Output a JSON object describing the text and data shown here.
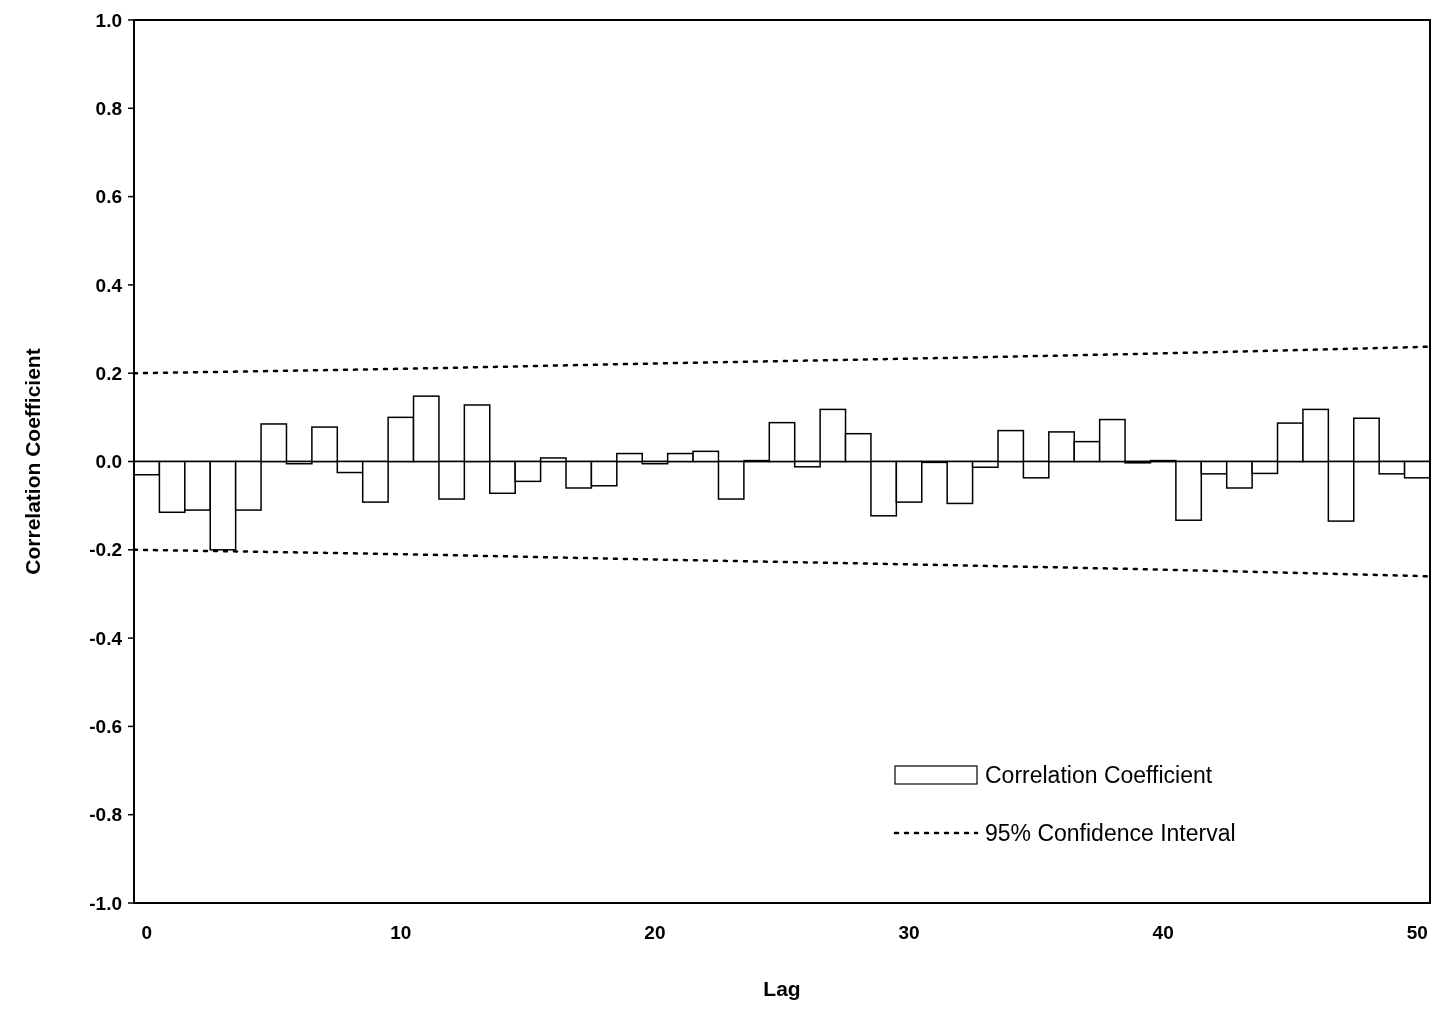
{
  "chart_data": {
    "type": "bar",
    "xlabel": "Lag",
    "ylabel": "Correlation Coefficient",
    "xlim": [
      -0.5,
      50.5
    ],
    "xticks": [
      0,
      10,
      20,
      30,
      40,
      50
    ],
    "ylim": [
      -1,
      1
    ],
    "yticks": [
      {
        "value": -1,
        "label": "-1.0"
      },
      {
        "value": -0.8,
        "label": "-0.8"
      },
      {
        "value": -0.6,
        "label": "-0.6"
      },
      {
        "value": -0.4,
        "label": "-0.4"
      },
      {
        "value": -0.2,
        "label": "-0.2"
      },
      {
        "value": 0,
        "label": "0.0"
      },
      {
        "value": 0.2,
        "label": "0.2"
      },
      {
        "value": 0.4,
        "label": "0.4"
      },
      {
        "value": 0.6,
        "label": "0.6"
      },
      {
        "value": 0.8,
        "label": "0.8"
      },
      {
        "value": 1,
        "label": "1.0"
      }
    ],
    "legend": "bottom right",
    "series": [
      {
        "name": "Correlation Coefficient",
        "color": "#ffffff",
        "x": [
          0,
          1,
          2,
          3,
          4,
          5,
          6,
          7,
          8,
          9,
          10,
          11,
          12,
          13,
          14,
          15,
          16,
          17,
          18,
          19,
          20,
          21,
          22,
          23,
          24,
          25,
          26,
          27,
          28,
          29,
          30,
          31,
          32,
          33,
          34,
          35,
          36,
          37,
          38,
          39,
          40,
          41,
          42,
          43,
          44,
          45,
          46,
          47,
          48,
          49,
          50
        ],
        "values": [
          -0.03,
          -0.115,
          -0.11,
          -0.2,
          -0.11,
          0.085,
          -0.005,
          0.078,
          -0.025,
          -0.092,
          0.1,
          0.148,
          -0.085,
          0.128,
          -0.072,
          -0.045,
          0.008,
          -0.06,
          -0.055,
          0.018,
          -0.005,
          0.018,
          0.023,
          -0.085,
          0.002,
          0.088,
          -0.012,
          0.118,
          0.063,
          -0.123,
          -0.092,
          -0.002,
          -0.095,
          -0.013,
          0.07,
          -0.037,
          0.067,
          0.045,
          0.095,
          -0.003,
          0.002,
          -0.133,
          -0.028,
          -0.06,
          -0.027,
          0.087,
          0.118,
          -0.135,
          0.098,
          -0.028,
          -0.037
        ]
      },
      {
        "name": "95% Confidence Interval",
        "type": "line",
        "color": "#000000",
        "line_style": "dotted",
        "x": [
          -0.5,
          10,
          20,
          30,
          40,
          50.5
        ],
        "values": [
          0.2,
          0.21,
          0.222,
          0.233,
          0.245,
          0.26
        ]
      },
      {
        "type": "line",
        "color": "#000000",
        "line_style": "dotted",
        "x": [
          -0.5,
          10,
          20,
          30,
          40,
          50.5
        ],
        "values": [
          -0.2,
          -0.21,
          -0.222,
          -0.233,
          -0.245,
          -0.26
        ]
      }
    ]
  }
}
